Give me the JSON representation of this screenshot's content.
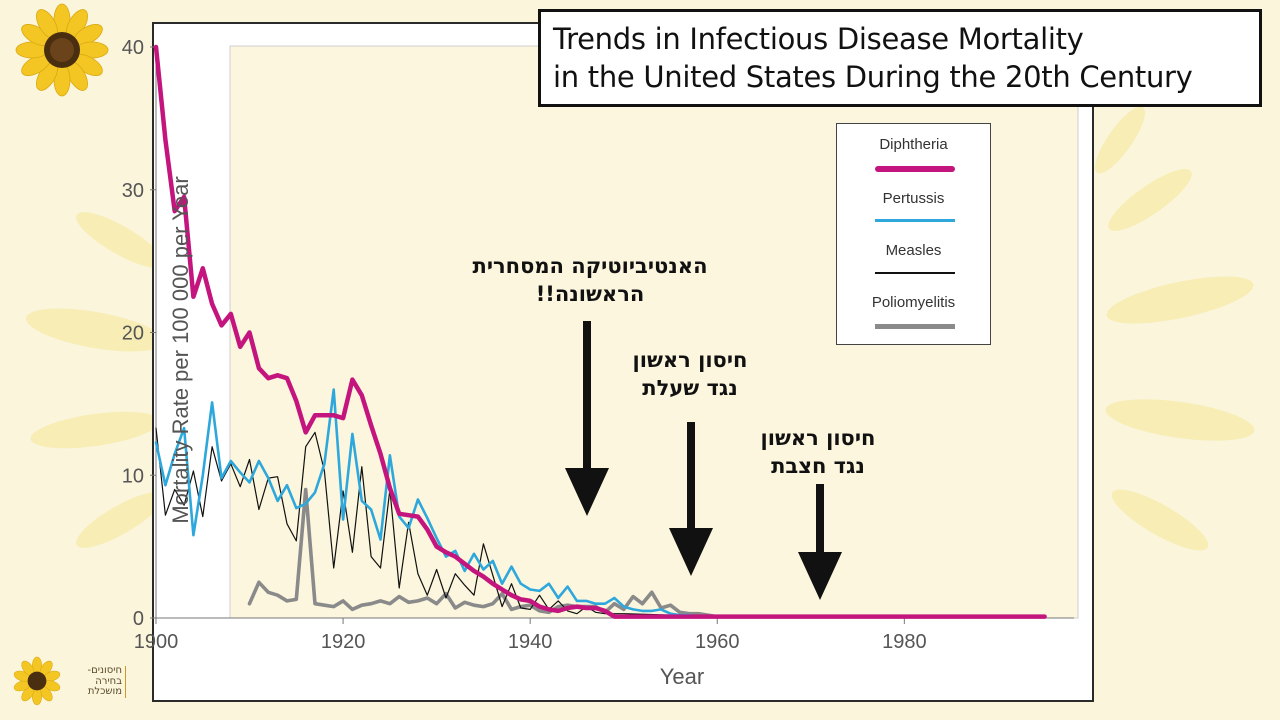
{
  "logo": {
    "text_lines": [
      "חיסונים-",
      "בחירה",
      "מושכלת"
    ],
    "bottom_text_lines": [
      "חיסונים-",
      "בחירה",
      "מושכלת"
    ]
  },
  "title": {
    "line1": "Trends in Infectious Disease Mortality",
    "line2": "in the United States During the 20th Century"
  },
  "annotations": {
    "antibiotic": [
      "האנטיביוטיקה המסחרית",
      "הראשונה!!"
    ],
    "diphtheria_vaccine": [
      "חיסון ראשון",
      "נגד שעלת"
    ],
    "measles_vaccine": [
      "חיסון ראשון",
      "נגד חצבת"
    ]
  },
  "colors": {
    "diphtheria": "#c4157e",
    "pertussis": "#2ea8dc",
    "measles": "#111111",
    "polio": "#8a8a8a",
    "plot_bg": "#fbf6dd",
    "page_bg": "#fbf5dc",
    "sunflower_petal": "#f3c623",
    "sunflower_center": "#4a2e10"
  },
  "chart_data": {
    "type": "line",
    "title": "Trends in Infectious Disease Mortality in the United States During the 20th Century",
    "xlabel": "Year",
    "ylabel": "Mortality Rate per 100 000 per Year",
    "xlim": [
      1900,
      1996
    ],
    "ylim": [
      0,
      40
    ],
    "xticks": [
      1900,
      1920,
      1940,
      1960,
      1980
    ],
    "yticks": [
      0,
      10,
      20,
      30,
      40
    ],
    "grid": false,
    "legend_position": "top-right",
    "series": [
      {
        "name": "Diphtheria",
        "x": [
          1900,
          1901,
          1902,
          1903,
          1904,
          1905,
          1906,
          1907,
          1908,
          1909,
          1910,
          1911,
          1912,
          1913,
          1914,
          1915,
          1916,
          1917,
          1918,
          1919,
          1920,
          1921,
          1922,
          1923,
          1924,
          1925,
          1926,
          1927,
          1928,
          1929,
          1930,
          1931,
          1932,
          1933,
          1934,
          1935,
          1936,
          1937,
          1938,
          1939,
          1940,
          1941,
          1942,
          1943,
          1944,
          1945,
          1946,
          1947,
          1948,
          1949,
          1950,
          1955,
          1960,
          1970,
          1980,
          1995
        ],
        "y": [
          40,
          33.5,
          28.5,
          29.5,
          22.5,
          24.5,
          22,
          20.5,
          21.3,
          19,
          20,
          17.5,
          16.8,
          17,
          16.8,
          15.2,
          13,
          14.2,
          14.2,
          14.2,
          14,
          16.7,
          15.6,
          13.5,
          11.5,
          9.1,
          7.3,
          7.2,
          7.1,
          6.2,
          5.0,
          4.6,
          4.3,
          3.8,
          3.3,
          2.9,
          2.4,
          2.0,
          1.6,
          1.3,
          1.2,
          0.8,
          0.6,
          0.5,
          0.7,
          0.8,
          0.7,
          0.7,
          0.5,
          0.1,
          0.1,
          0.1,
          0.1,
          0.1,
          0.1,
          0.1
        ]
      },
      {
        "name": "Pertussis",
        "x": [
          1900,
          1901,
          1902,
          1903,
          1904,
          1905,
          1906,
          1907,
          1908,
          1909,
          1910,
          1911,
          1912,
          1913,
          1914,
          1915,
          1916,
          1917,
          1918,
          1919,
          1920,
          1921,
          1922,
          1923,
          1924,
          1925,
          1926,
          1927,
          1928,
          1929,
          1930,
          1931,
          1932,
          1933,
          1934,
          1935,
          1936,
          1937,
          1938,
          1939,
          1940,
          1941,
          1942,
          1943,
          1944,
          1945,
          1946,
          1947,
          1948,
          1949,
          1950,
          1951,
          1952,
          1953,
          1954,
          1955,
          1956,
          1957,
          1958,
          1960,
          1995
        ],
        "y": [
          12.3,
          9.3,
          11.5,
          13.3,
          5.8,
          10.0,
          15.1,
          9.8,
          11.0,
          10.2,
          9.5,
          11.0,
          9.8,
          8.2,
          9.3,
          7.7,
          8.0,
          8.8,
          10.8,
          16.0,
          6.9,
          12.9,
          8.2,
          7.6,
          5.5,
          11.4,
          7.1,
          6.3,
          8.3,
          7.0,
          5.6,
          4.3,
          4.7,
          3.3,
          4.5,
          3.4,
          4.0,
          2.4,
          3.6,
          2.4,
          2.0,
          1.9,
          2.4,
          1.4,
          2.2,
          1.2,
          1.2,
          1.0,
          1.0,
          1.4,
          0.8,
          0.6,
          0.5,
          0.5,
          0.6,
          0.3,
          0.2,
          0.2,
          0.1,
          0.1,
          0.1
        ]
      },
      {
        "name": "Measles",
        "x": [
          1900,
          1901,
          1902,
          1903,
          1904,
          1905,
          1906,
          1907,
          1908,
          1909,
          1910,
          1911,
          1912,
          1913,
          1914,
          1915,
          1916,
          1917,
          1918,
          1919,
          1920,
          1921,
          1922,
          1923,
          1924,
          1925,
          1926,
          1927,
          1928,
          1929,
          1930,
          1931,
          1932,
          1933,
          1934,
          1935,
          1936,
          1937,
          1938,
          1939,
          1940,
          1941,
          1942,
          1943,
          1944,
          1945,
          1946,
          1947,
          1948,
          1950,
          1955,
          1960,
          1970,
          1995
        ],
        "y": [
          13.3,
          7.2,
          9.0,
          7.9,
          10.3,
          7.1,
          12.0,
          9.6,
          10.8,
          9.2,
          11.1,
          7.6,
          9.8,
          9.9,
          6.6,
          5.4,
          12.0,
          13.0,
          10.3,
          3.5,
          8.9,
          4.6,
          10.6,
          4.3,
          3.5,
          9.0,
          2.1,
          6.7,
          3.1,
          1.6,
          3.4,
          1.4,
          3.1,
          2.3,
          1.6,
          5.2,
          3.0,
          0.8,
          2.4,
          0.7,
          0.6,
          1.6,
          0.6,
          1.2,
          0.5,
          0.3,
          0.8,
          0.4,
          0.3,
          0.3,
          0.2,
          0.1,
          0.1,
          0.1
        ]
      },
      {
        "name": "Poliomyelitis",
        "x": [
          1910,
          1911,
          1912,
          1913,
          1914,
          1915,
          1916,
          1917,
          1918,
          1919,
          1920,
          1921,
          1922,
          1923,
          1924,
          1925,
          1926,
          1927,
          1928,
          1929,
          1930,
          1931,
          1932,
          1933,
          1934,
          1935,
          1936,
          1937,
          1938,
          1939,
          1940,
          1941,
          1942,
          1943,
          1944,
          1945,
          1946,
          1947,
          1948,
          1949,
          1950,
          1951,
          1952,
          1953,
          1954,
          1955,
          1956,
          1957,
          1958,
          1959,
          1960,
          1962,
          1965
        ],
        "y": [
          1.0,
          2.5,
          1.8,
          1.6,
          1.2,
          1.3,
          9.0,
          1.0,
          0.9,
          0.8,
          1.2,
          0.6,
          0.9,
          1.0,
          1.2,
          1.0,
          1.5,
          1.1,
          1.2,
          1.4,
          1.0,
          1.7,
          0.7,
          1.1,
          0.9,
          0.8,
          1.0,
          1.7,
          0.6,
          0.8,
          0.9,
          0.5,
          0.4,
          0.8,
          0.9,
          0.8,
          0.8,
          0.8,
          0.4,
          1.0,
          0.6,
          1.5,
          1.0,
          1.8,
          0.7,
          0.9,
          0.4,
          0.3,
          0.3,
          0.2,
          0.1,
          0.1,
          0.1
        ]
      }
    ]
  }
}
